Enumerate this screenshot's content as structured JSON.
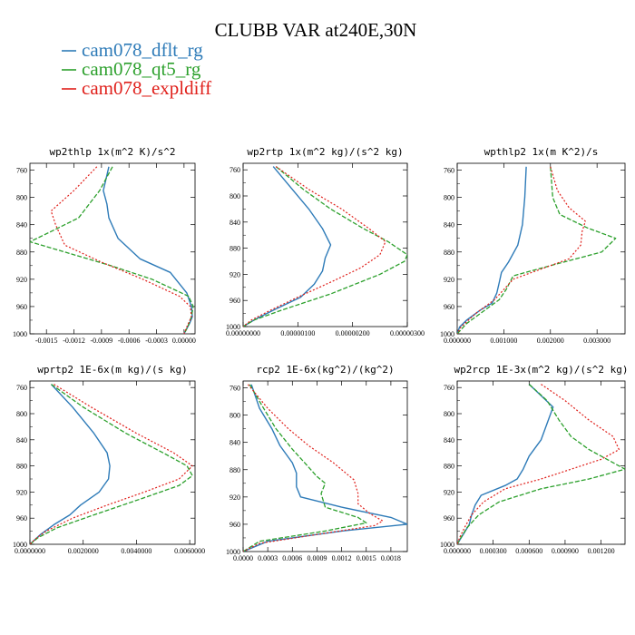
{
  "colors": {
    "dflt": "#2e7bb8",
    "qt5": "#2ca02c",
    "expl": "#e0201b"
  },
  "figure_title": "CLUBB VAR at240E,30N",
  "legend": [
    {
      "label": "cam078_dflt_rg",
      "color": "#2e7bb8"
    },
    {
      "label": "cam078_qt5_rg",
      "color": "#2ca02c"
    },
    {
      "label": "cam078_expldiff",
      "color": "#e0201b"
    }
  ],
  "chart_data": [
    {
      "type": "line",
      "title": "wp2thlp  1x(m^2 K)/s^2",
      "xlim": [
        -0.00168,
        0.00012
      ],
      "ylim": [
        750,
        1000
      ],
      "xticks": [
        -0.0015,
        -0.0012,
        -0.0009,
        -0.0006,
        -0.0003,
        0.0
      ],
      "xtick_labels": [
        "-0.0015",
        "-0.0012",
        "-0.0009",
        "-0.0006",
        "-0.0003",
        "0.00000"
      ],
      "yticks": [
        760,
        800,
        840,
        880,
        920,
        960,
        1000
      ],
      "ytick_labels": [
        "760",
        "800",
        "840",
        "880",
        "920",
        "960",
        "1000"
      ],
      "series": [
        {
          "name": "cam078_dflt_rg",
          "p": [
            755,
            790,
            810,
            830,
            860,
            890,
            910,
            940,
            960,
            975,
            985,
            995,
            1000
          ],
          "v": [
            -0.00082,
            -0.00088,
            -0.00084,
            -0.00082,
            -0.00072,
            -0.00048,
            -0.00015,
            3e-05,
            8e-05,
            9e-05,
            6e-05,
            2e-05,
            0.0
          ]
        },
        {
          "name": "cam078_qt5_rg",
          "p": [
            755,
            790,
            830,
            850,
            865,
            880,
            900,
            920,
            945,
            960,
            975,
            990,
            1000
          ],
          "v": [
            -0.00078,
            -0.00092,
            -0.00115,
            -0.00145,
            -0.00168,
            -0.0013,
            -0.0008,
            -0.00035,
            5e-05,
            0.0001,
            8e-05,
            4e-05,
            0.0
          ]
        },
        {
          "name": "cam078_expldiff",
          "p": [
            755,
            790,
            820,
            840,
            870,
            895,
            920,
            945,
            960,
            975,
            990,
            1000
          ],
          "v": [
            -0.00095,
            -0.0012,
            -0.00145,
            -0.0014,
            -0.0013,
            -0.0009,
            -0.00045,
            -5e-05,
            7e-05,
            8e-05,
            3e-05,
            0.0
          ]
        }
      ]
    },
    {
      "type": "line",
      "title": "wp2rtp  1x(m^2 kg)/(s^2 kg)",
      "xlim": [
        0.0,
        3e-06
      ],
      "ylim": [
        750,
        1000
      ],
      "xticks": [
        0.0,
        1e-06,
        2e-06,
        3e-06
      ],
      "xtick_labels": [
        "0.00000000",
        "0.00000100",
        "0.00000200",
        "0.00000300"
      ],
      "yticks": [
        760,
        800,
        840,
        880,
        920,
        960,
        1000
      ],
      "ytick_labels": [
        "760",
        "800",
        "840",
        "880",
        "920",
        "960",
        "1000"
      ],
      "series": [
        {
          "name": "cam078_dflt_rg",
          "p": [
            755,
            790,
            820,
            850,
            875,
            895,
            915,
            935,
            955,
            975,
            990,
            1000
          ],
          "v": [
            5.5e-07,
            9e-07,
            1.2e-06,
            1.45e-06,
            1.6e-06,
            1.5e-06,
            1.45e-06,
            1.3e-06,
            1.05e-06,
            5.5e-07,
            2e-07,
            0.0
          ]
        },
        {
          "name": "cam078_qt5_rg",
          "p": [
            755,
            790,
            820,
            850,
            870,
            890,
            900,
            920,
            950,
            975,
            990,
            1000
          ],
          "v": [
            6e-07,
            1.1e-06,
            1.6e-06,
            2.2e-06,
            2.65e-06,
            3e-06,
            2.95e-06,
            2.5e-06,
            1.6e-06,
            7e-07,
            2e-07,
            0.0
          ]
        },
        {
          "name": "cam078_expldiff",
          "p": [
            755,
            790,
            820,
            850,
            870,
            890,
            910,
            930,
            955,
            975,
            990,
            1000
          ],
          "v": [
            6e-07,
            1.2e-06,
            1.8e-06,
            2.3e-06,
            2.6e-06,
            2.5e-06,
            2.15e-06,
            1.65e-06,
            1e-06,
            5e-07,
            1.5e-07,
            0.0
          ]
        }
      ]
    },
    {
      "type": "line",
      "title": "wpthlp2  1x(m K^2)/s",
      "xlim": [
        0.0,
        0.0036
      ],
      "ylim": [
        750,
        1000
      ],
      "xticks": [
        0.0,
        0.001,
        0.002,
        0.003
      ],
      "xtick_labels": [
        "0.000000",
        "0.001000",
        "0.002000",
        "0.003000"
      ],
      "yticks": [
        760,
        800,
        840,
        880,
        920,
        960,
        1000
      ],
      "ytick_labels": [
        "760",
        "800",
        "840",
        "880",
        "920",
        "960",
        "1000"
      ],
      "series": [
        {
          "name": "cam078_dflt_rg",
          "p": [
            755,
            800,
            840,
            870,
            895,
            910,
            925,
            940,
            955,
            965,
            980,
            990,
            1000
          ],
          "v": [
            0.00148,
            0.00145,
            0.0014,
            0.0013,
            0.0011,
            0.00095,
            0.0009,
            0.00085,
            0.00075,
            0.0005,
            0.0002,
            5e-05,
            0.0
          ]
        },
        {
          "name": "cam078_qt5_rg",
          "p": [
            755,
            800,
            825,
            845,
            860,
            880,
            900,
            915,
            935,
            950,
            965,
            985,
            1000
          ],
          "v": [
            0.002,
            0.00205,
            0.0022,
            0.0028,
            0.0034,
            0.0031,
            0.002,
            0.0012,
            0.00105,
            0.0009,
            0.0006,
            0.0002,
            0.0
          ]
        },
        {
          "name": "cam078_expldiff",
          "p": [
            755,
            790,
            815,
            835,
            850,
            870,
            890,
            905,
            920,
            935,
            950,
            970,
            990,
            1000
          ],
          "v": [
            0.002,
            0.00215,
            0.0024,
            0.00275,
            0.00268,
            0.00265,
            0.0024,
            0.0018,
            0.0012,
            0.001,
            0.0008,
            0.0004,
            8e-05,
            0.0
          ]
        }
      ]
    },
    {
      "type": "line",
      "title": "wprtp2  1E-6x(m kg)/(s kg)",
      "xlim": [
        0.0,
        0.0062
      ],
      "ylim": [
        750,
        1000
      ],
      "xticks": [
        0.0,
        0.002,
        0.004,
        0.006
      ],
      "xtick_labels": [
        "0.0000000",
        "0.0020000",
        "0.0040000",
        "0.0060000"
      ],
      "yticks": [
        760,
        800,
        840,
        880,
        920,
        960,
        1000
      ],
      "ytick_labels": [
        "760",
        "800",
        "840",
        "880",
        "920",
        "960",
        "1000"
      ],
      "series": [
        {
          "name": "cam078_dflt_rg",
          "p": [
            755,
            790,
            830,
            860,
            880,
            900,
            920,
            940,
            955,
            970,
            985,
            1000
          ],
          "v": [
            0.0008,
            0.0016,
            0.0024,
            0.0029,
            0.003,
            0.00295,
            0.0026,
            0.0019,
            0.0015,
            0.0009,
            0.0004,
            0.0
          ]
        },
        {
          "name": "cam078_qt5_rg",
          "p": [
            755,
            790,
            830,
            860,
            880,
            895,
            910,
            930,
            955,
            975,
            990,
            1000
          ],
          "v": [
            0.0008,
            0.002,
            0.0036,
            0.005,
            0.0059,
            0.0061,
            0.0056,
            0.0042,
            0.0024,
            0.001,
            0.0003,
            0.0
          ]
        },
        {
          "name": "cam078_expldiff",
          "p": [
            755,
            790,
            830,
            860,
            880,
            900,
            920,
            940,
            960,
            980,
            992,
            1000
          ],
          "v": [
            0.0009,
            0.0023,
            0.004,
            0.0054,
            0.0061,
            0.0056,
            0.0043,
            0.0029,
            0.0016,
            0.0006,
            0.0002,
            0.0
          ]
        }
      ]
    },
    {
      "type": "line",
      "title": "rcp2  1E-6x(kg^2)/(kg^2)",
      "xlim": [
        0.0,
        0.002
      ],
      "ylim": [
        750,
        1000
      ],
      "xticks": [
        0.0,
        0.0003,
        0.0006,
        0.0009,
        0.0012,
        0.0015,
        0.0018
      ],
      "xtick_labels": [
        "0.0000",
        "0.0003",
        "0.0006",
        "0.0009",
        "0.0012",
        "0.0015",
        "0.0018"
      ],
      "yticks": [
        760,
        800,
        840,
        880,
        920,
        960,
        1000
      ],
      "ytick_labels": [
        "760",
        "800",
        "840",
        "880",
        "920",
        "960",
        "1000"
      ],
      "series": [
        {
          "name": "cam078_dflt_rg",
          "p": [
            755,
            790,
            820,
            845,
            870,
            885,
            905,
            920,
            935,
            950,
            960,
            970,
            985,
            1000
          ],
          "v": [
            0.0001,
            0.0002,
            0.00035,
            0.00045,
            0.0006,
            0.00065,
            0.00065,
            0.0007,
            0.0012,
            0.0018,
            0.002,
            0.0012,
            0.0003,
            0.0
          ]
        },
        {
          "name": "cam078_qt5_rg",
          "p": [
            755,
            790,
            820,
            850,
            870,
            890,
            900,
            915,
            935,
            950,
            958,
            970,
            985,
            1000
          ],
          "v": [
            8e-05,
            0.00025,
            0.0004,
            0.0006,
            0.00075,
            0.0009,
            0.001,
            0.00095,
            0.001,
            0.0014,
            0.0015,
            0.001,
            0.0002,
            0.0
          ]
        },
        {
          "name": "cam078_expldiff",
          "p": [
            755,
            790,
            820,
            845,
            870,
            895,
            915,
            930,
            945,
            955,
            962,
            975,
            988,
            1000
          ],
          "v": [
            6e-05,
            0.0003,
            0.00055,
            0.0008,
            0.0011,
            0.00135,
            0.0014,
            0.0014,
            0.00155,
            0.0017,
            0.0016,
            0.0009,
            0.0002,
            0.0
          ]
        }
      ]
    },
    {
      "type": "line",
      "title": "wp2rcp  1E-3x(m^2 kg)/(s^2 kg)",
      "xlim": [
        0.0,
        0.0014
      ],
      "ylim": [
        750,
        1000
      ],
      "xticks": [
        0.0,
        0.0003,
        0.0006,
        0.0009,
        0.0012
      ],
      "xtick_labels": [
        "0.000000",
        "0.000300",
        "0.000600",
        "0.000900",
        "0.001200"
      ],
      "yticks": [
        760,
        800,
        840,
        880,
        920,
        960,
        1000
      ],
      "ytick_labels": [
        "760",
        "800",
        "840",
        "880",
        "920",
        "960",
        "1000"
      ],
      "series": [
        {
          "name": "cam078_dflt_rg",
          "p": [
            755,
            790,
            815,
            840,
            865,
            885,
            900,
            910,
            925,
            940,
            955,
            970,
            985,
            1000
          ],
          "v": [
            0.0006,
            0.0008,
            0.00075,
            0.0007,
            0.0006,
            0.00055,
            0.0005,
            0.0004,
            0.0002,
            0.00015,
            0.00012,
            0.0001,
            5e-05,
            0.0
          ]
        },
        {
          "name": "cam078_qt5_rg",
          "p": [
            755,
            780,
            810,
            835,
            855,
            870,
            885,
            900,
            915,
            935,
            955,
            975,
            990,
            1000
          ],
          "v": [
            0.0006,
            0.00075,
            0.00085,
            0.00095,
            0.0011,
            0.00125,
            0.0014,
            0.0011,
            0.0007,
            0.00035,
            0.00018,
            8e-05,
            3e-05,
            0.0
          ]
        },
        {
          "name": "cam078_expldiff",
          "p": [
            755,
            780,
            810,
            835,
            855,
            870,
            885,
            900,
            915,
            935,
            955,
            975,
            990,
            1000
          ],
          "v": [
            0.0007,
            0.0009,
            0.0011,
            0.0013,
            0.00135,
            0.0012,
            0.00095,
            0.0007,
            0.0004,
            0.00022,
            0.00012,
            6e-05,
            2e-05,
            0.0
          ]
        }
      ]
    }
  ]
}
